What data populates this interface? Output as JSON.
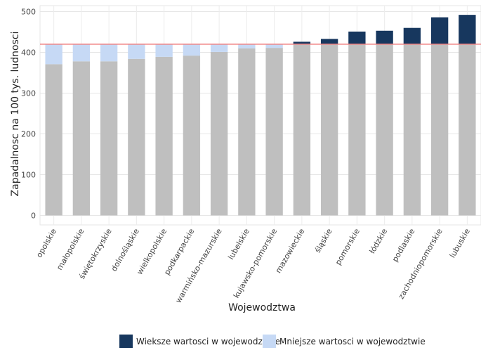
{
  "chart_data": {
    "type": "bar",
    "stacked": true,
    "xlabel": "Wojewodztwa",
    "ylabel": "Zapadalnosc na 100 tys. ludnosci",
    "ylim": [
      0,
      500
    ],
    "yticks": [
      0,
      100,
      200,
      300,
      400,
      500
    ],
    "reference_line": 420,
    "grid": true,
    "legend_position": "bottom",
    "categories": [
      "opolskie",
      "małopolskie",
      "świętokrzyskie",
      "dolnośląskie",
      "wielkopolskie",
      "podkarpackie",
      "warmińsko-mazurskie",
      "lubelskie",
      "kujawsko-pomorskie",
      "mazowieckie",
      "śląskie",
      "pomorskie",
      "łódzkie",
      "podlaskie",
      "zachodniopomorskie",
      "lubuskie"
    ],
    "values": [
      371,
      378,
      378,
      384,
      389,
      392,
      401,
      410,
      411,
      426,
      433,
      451,
      453,
      460,
      486,
      492
    ],
    "series": [
      {
        "name": "Wieksze wartosci w wojewodztwie",
        "color": "#17375e"
      },
      {
        "name": "Mniejsze wartosci w wojewodztwie",
        "color": "#c6d9f5"
      }
    ],
    "base_color": "#bfbfbf",
    "reference_color": "#f08080"
  }
}
